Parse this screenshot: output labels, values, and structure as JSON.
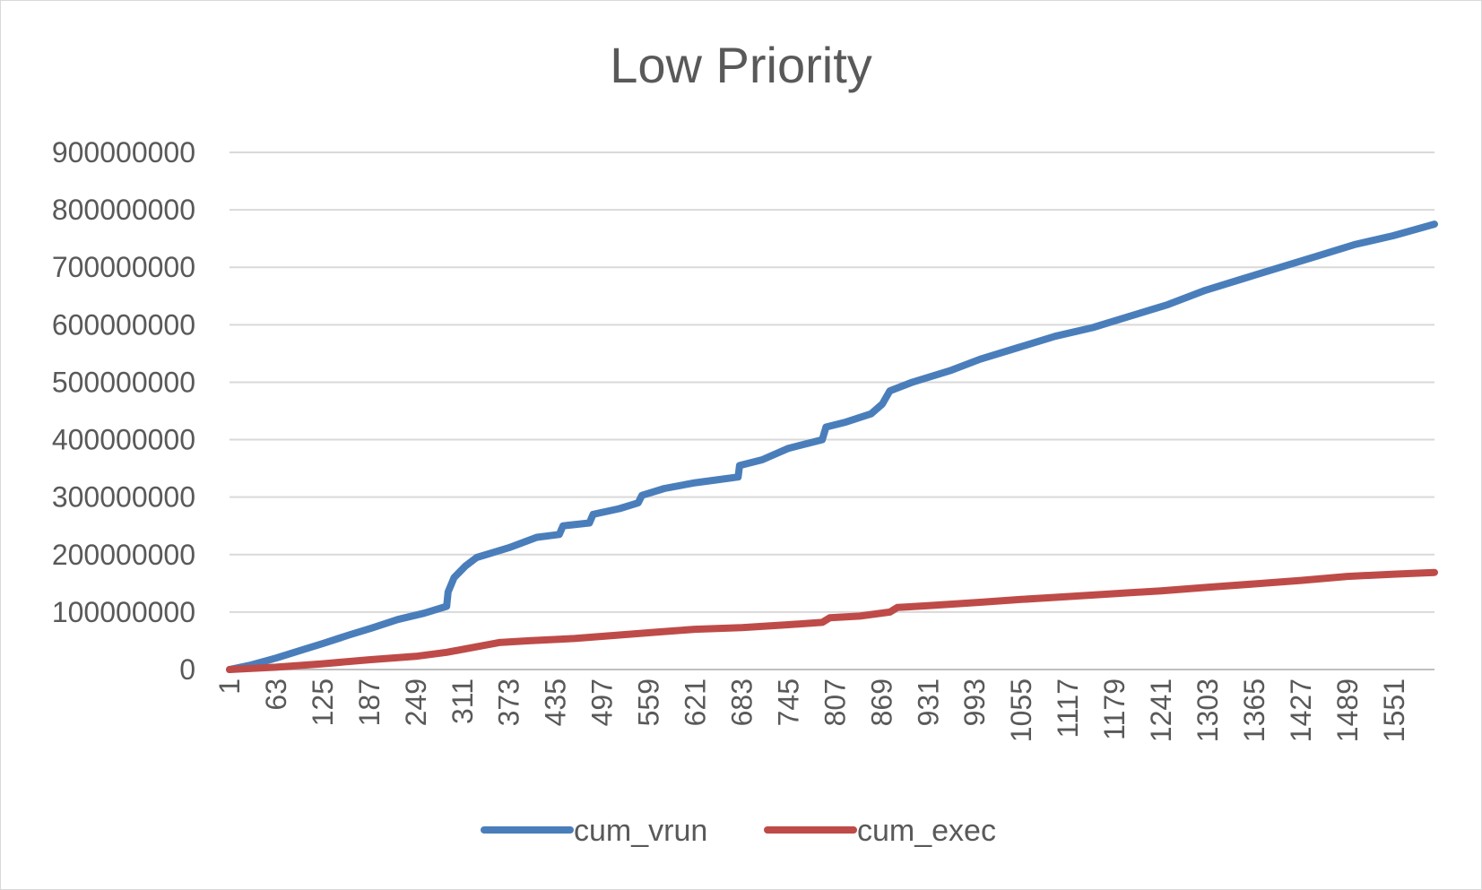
{
  "chart_data": {
    "type": "line",
    "title": "Low Priority",
    "xlabel": "",
    "ylabel": "",
    "x_range": [
      1,
      1605
    ],
    "x_tick_labels": [
      "1",
      "63",
      "125",
      "187",
      "249",
      "311",
      "373",
      "435",
      "497",
      "559",
      "621",
      "683",
      "745",
      "807",
      "869",
      "931",
      "993",
      "1055",
      "1117",
      "1179",
      "1241",
      "1303",
      "1365",
      "1427",
      "1489",
      "1551"
    ],
    "ylim": [
      0,
      900000000
    ],
    "y_tick_labels": [
      "0",
      "100000000",
      "200000000",
      "300000000",
      "400000000",
      "500000000",
      "600000000",
      "700000000",
      "800000000",
      "900000000"
    ],
    "y_ticks": [
      0,
      100000000,
      200000000,
      300000000,
      400000000,
      500000000,
      600000000,
      700000000,
      800000000,
      900000000
    ],
    "grid": true,
    "legend_position": "bottom",
    "series": [
      {
        "name": "cum_vrun",
        "color": "#4a7ebb",
        "points": [
          [
            1,
            0
          ],
          [
            30,
            8000000
          ],
          [
            63,
            20000000
          ],
          [
            95,
            33000000
          ],
          [
            125,
            45000000
          ],
          [
            160,
            60000000
          ],
          [
            190,
            72000000
          ],
          [
            225,
            87000000
          ],
          [
            260,
            98000000
          ],
          [
            290,
            110000000
          ],
          [
            292,
            135000000
          ],
          [
            300,
            160000000
          ],
          [
            315,
            180000000
          ],
          [
            330,
            195000000
          ],
          [
            373,
            212000000
          ],
          [
            410,
            230000000
          ],
          [
            440,
            235000000
          ],
          [
            445,
            250000000
          ],
          [
            480,
            255000000
          ],
          [
            485,
            270000000
          ],
          [
            520,
            280000000
          ],
          [
            545,
            290000000
          ],
          [
            550,
            303000000
          ],
          [
            580,
            315000000
          ],
          [
            621,
            325000000
          ],
          [
            650,
            330000000
          ],
          [
            678,
            335000000
          ],
          [
            680,
            355000000
          ],
          [
            710,
            365000000
          ],
          [
            745,
            385000000
          ],
          [
            790,
            400000000
          ],
          [
            795,
            422000000
          ],
          [
            820,
            430000000
          ],
          [
            855,
            445000000
          ],
          [
            870,
            462000000
          ],
          [
            880,
            485000000
          ],
          [
            910,
            500000000
          ],
          [
            960,
            520000000
          ],
          [
            1000,
            540000000
          ],
          [
            1050,
            560000000
          ],
          [
            1100,
            580000000
          ],
          [
            1150,
            595000000
          ],
          [
            1200,
            615000000
          ],
          [
            1250,
            635000000
          ],
          [
            1300,
            660000000
          ],
          [
            1350,
            680000000
          ],
          [
            1400,
            700000000
          ],
          [
            1450,
            720000000
          ],
          [
            1500,
            740000000
          ],
          [
            1550,
            755000000
          ],
          [
            1605,
            775000000
          ]
        ]
      },
      {
        "name": "cum_exec",
        "color": "#be4b48",
        "points": [
          [
            1,
            0
          ],
          [
            63,
            4000000
          ],
          [
            125,
            10000000
          ],
          [
            187,
            17000000
          ],
          [
            249,
            23000000
          ],
          [
            290,
            30000000
          ],
          [
            311,
            35000000
          ],
          [
            340,
            42000000
          ],
          [
            360,
            47000000
          ],
          [
            400,
            50000000
          ],
          [
            460,
            54000000
          ],
          [
            520,
            60000000
          ],
          [
            570,
            65000000
          ],
          [
            620,
            70000000
          ],
          [
            683,
            73000000
          ],
          [
            745,
            78000000
          ],
          [
            790,
            82000000
          ],
          [
            800,
            90000000
          ],
          [
            840,
            93000000
          ],
          [
            880,
            100000000
          ],
          [
            890,
            108000000
          ],
          [
            931,
            111000000
          ],
          [
            1000,
            117000000
          ],
          [
            1055,
            122000000
          ],
          [
            1117,
            127000000
          ],
          [
            1179,
            132000000
          ],
          [
            1241,
            137000000
          ],
          [
            1303,
            143000000
          ],
          [
            1365,
            149000000
          ],
          [
            1427,
            155000000
          ],
          [
            1489,
            162000000
          ],
          [
            1551,
            166000000
          ],
          [
            1605,
            169000000
          ]
        ]
      }
    ]
  }
}
